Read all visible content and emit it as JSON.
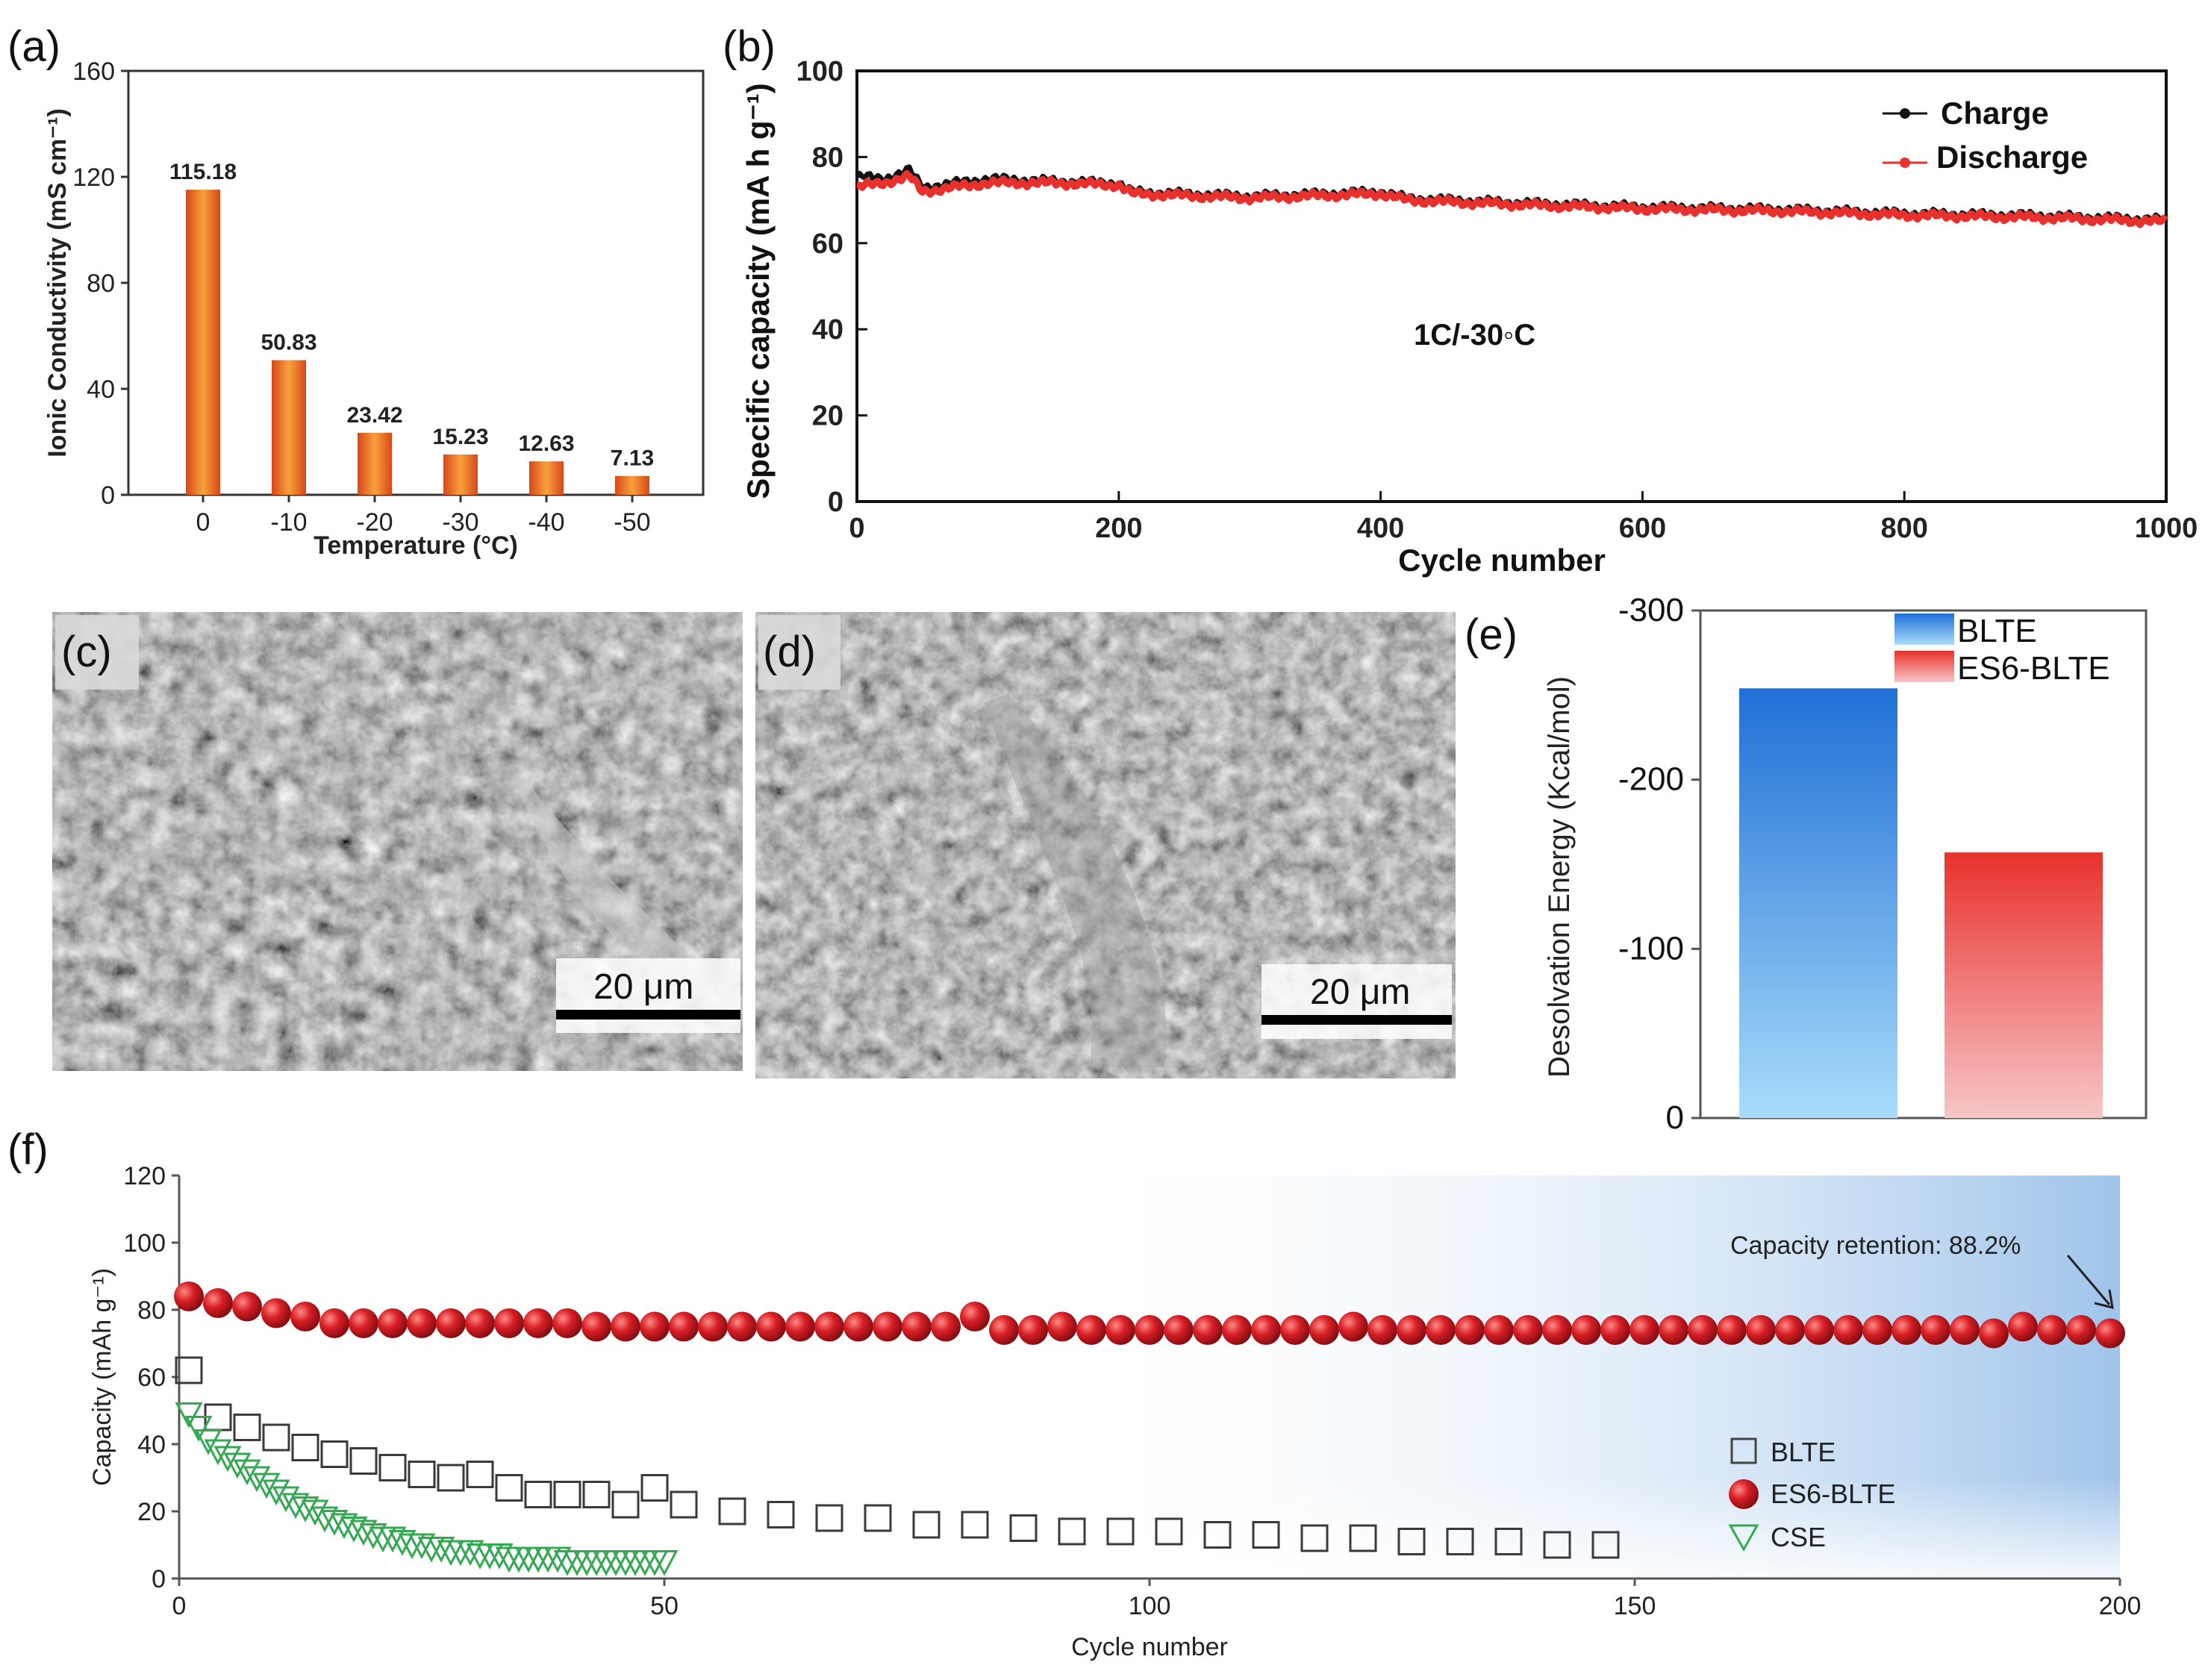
{
  "panels": {
    "a": {
      "label": "(a)"
    },
    "b": {
      "label": "(b)"
    },
    "c": {
      "label": "(c)",
      "scale_bar": "20 μm"
    },
    "d": {
      "label": "(d)",
      "scale_bar": "20 μm"
    },
    "e": {
      "label": "(e)"
    },
    "f": {
      "label": "(f)"
    }
  },
  "colors": {
    "orange": "#f07d1c",
    "orange_dark": "#d7471a",
    "red": "#e8312d",
    "dark_red": "#b8141c",
    "blue": "#1f6fd6",
    "light_blue": "#a9dcfa",
    "pink": "#f7b8bb",
    "green": "#34a853",
    "black": "#111111"
  },
  "chart_data": [
    {
      "id": "a",
      "type": "bar",
      "title": "",
      "xlabel": "Temperature (°C)",
      "ylabel": "Ionic Conductivity (mS cm⁻¹)",
      "categories": [
        "0",
        "-10",
        "-20",
        "-30",
        "-40",
        "-50"
      ],
      "values": [
        115.18,
        50.83,
        23.42,
        15.23,
        12.63,
        7.13
      ],
      "data_labels": [
        "115.18",
        "50.83",
        "23.42",
        "15.23",
        "12.63",
        "7.13"
      ],
      "ylim": [
        0,
        160
      ],
      "yticks": [
        "0",
        "40",
        "80",
        "120",
        "160"
      ]
    },
    {
      "id": "b",
      "type": "line",
      "xlabel": "Cycle number",
      "ylabel": "Specific capacity (mA h g⁻¹)",
      "xlim": [
        0,
        1000
      ],
      "ylim": [
        0,
        100
      ],
      "xticks": [
        "0",
        "200",
        "400",
        "600",
        "800",
        "1000"
      ],
      "yticks": [
        "0",
        "20",
        "40",
        "60",
        "80",
        "100"
      ],
      "annotation": "1C/-30◦C",
      "legend_position": "top-right",
      "series": [
        {
          "name": "Charge",
          "x": [
            0,
            20,
            40,
            50,
            100,
            150,
            200,
            210,
            300,
            400,
            420,
            500,
            600,
            700,
            800,
            900,
            1000
          ],
          "values": [
            75.5,
            75,
            77,
            73,
            75,
            74.5,
            74,
            72,
            71,
            72,
            70.5,
            69.5,
            68.5,
            68,
            67,
            66.5,
            65.5
          ]
        },
        {
          "name": "Discharge",
          "x": [
            0,
            20,
            40,
            50,
            100,
            150,
            200,
            210,
            300,
            400,
            420,
            500,
            600,
            700,
            800,
            900,
            1000
          ],
          "values": [
            73,
            74,
            75.5,
            72,
            74,
            74,
            73.5,
            71.5,
            70.5,
            71.5,
            70,
            69,
            68,
            67.5,
            66.5,
            66,
            65
          ]
        }
      ]
    },
    {
      "id": "e",
      "type": "bar",
      "ylabel": "Desolvation  Energy (Kcal/mol)",
      "ylim": [
        0,
        -300
      ],
      "yticks": [
        "0",
        "-100",
        "-200",
        "-300"
      ],
      "legend_position": "top-right",
      "series": [
        {
          "name": "BLTE",
          "values": [
            -254
          ]
        },
        {
          "name": "ES6-BLTE",
          "values": [
            -157
          ]
        }
      ]
    },
    {
      "id": "f",
      "type": "scatter",
      "xlabel": "Cycle number",
      "ylabel": "Capacity (mAh g⁻¹)",
      "xlim": [
        0,
        200
      ],
      "ylim": [
        0,
        120
      ],
      "xticks": [
        "0",
        "50",
        "100",
        "150",
        "200"
      ],
      "yticks": [
        "0",
        "20",
        "40",
        "60",
        "80",
        "100",
        "120"
      ],
      "annotation": "Capacity retention: 88.2%",
      "legend_position": "bottom-right",
      "series": [
        {
          "name": "BLTE",
          "marker": "open-square",
          "x": [
            1,
            4,
            7,
            10,
            13,
            16,
            19,
            22,
            25,
            28,
            31,
            34,
            37,
            40,
            43,
            46,
            49,
            52,
            57,
            62,
            67,
            72,
            77,
            82,
            87,
            92,
            97,
            102,
            107,
            112,
            117,
            122,
            127,
            132,
            137,
            142,
            147
          ],
          "values": [
            62,
            48,
            45,
            42,
            39,
            37,
            35,
            33,
            31,
            30,
            31,
            27,
            25,
            25,
            25,
            22,
            27,
            22,
            20,
            19,
            18,
            18,
            16,
            16,
            15,
            14,
            14,
            14,
            13,
            13,
            12,
            12,
            11,
            11,
            11,
            10,
            10
          ]
        },
        {
          "name": "ES6-BLTE",
          "marker": "filled-circle",
          "x": [
            1,
            4,
            7,
            10,
            13,
            16,
            19,
            22,
            25,
            28,
            31,
            34,
            37,
            40,
            43,
            46,
            49,
            52,
            55,
            58,
            61,
            64,
            67,
            70,
            73,
            76,
            79,
            82,
            85,
            88,
            91,
            94,
            97,
            100,
            103,
            106,
            109,
            112,
            115,
            118,
            121,
            124,
            127,
            130,
            133,
            136,
            139,
            142,
            145,
            148,
            151,
            154,
            157,
            160,
            163,
            166,
            169,
            172,
            175,
            178,
            181,
            184,
            187,
            190,
            193,
            196,
            199
          ],
          "values": [
            84,
            82,
            81,
            79,
            78,
            76,
            76,
            76,
            76,
            76,
            76,
            76,
            76,
            76,
            75,
            75,
            75,
            75,
            75,
            75,
            75,
            75,
            75,
            75,
            75,
            75,
            75,
            78,
            74,
            74,
            75,
            74,
            74,
            74,
            74,
            74,
            74,
            74,
            74,
            74,
            75,
            74,
            74,
            74,
            74,
            74,
            74,
            74,
            74,
            74,
            74,
            74,
            74,
            74,
            74,
            74,
            74,
            74,
            74,
            74,
            74,
            74,
            73,
            75,
            74,
            74,
            73
          ]
        },
        {
          "name": "CSE",
          "marker": "open-triangle-down",
          "x": [
            1,
            2,
            3,
            4,
            5,
            6,
            7,
            8,
            9,
            10,
            11,
            12,
            13,
            14,
            15,
            16,
            17,
            18,
            19,
            20,
            21,
            22,
            23,
            24,
            25,
            26,
            27,
            28,
            29,
            30,
            31,
            32,
            33,
            34,
            35,
            36,
            37,
            38,
            39,
            40,
            41,
            42,
            43,
            44,
            45,
            46,
            47,
            48,
            49,
            50
          ],
          "values": [
            49,
            45,
            41,
            38,
            36,
            34,
            32,
            30,
            28,
            26,
            24,
            22,
            21,
            20,
            18,
            17,
            16,
            15,
            14,
            13,
            12,
            12,
            11,
            10,
            10,
            9,
            9,
            8,
            8,
            8,
            7,
            7,
            7,
            6,
            6,
            6,
            6,
            6,
            6,
            5,
            5,
            5,
            5,
            5,
            5,
            5,
            5,
            5,
            5,
            5
          ]
        }
      ]
    }
  ]
}
